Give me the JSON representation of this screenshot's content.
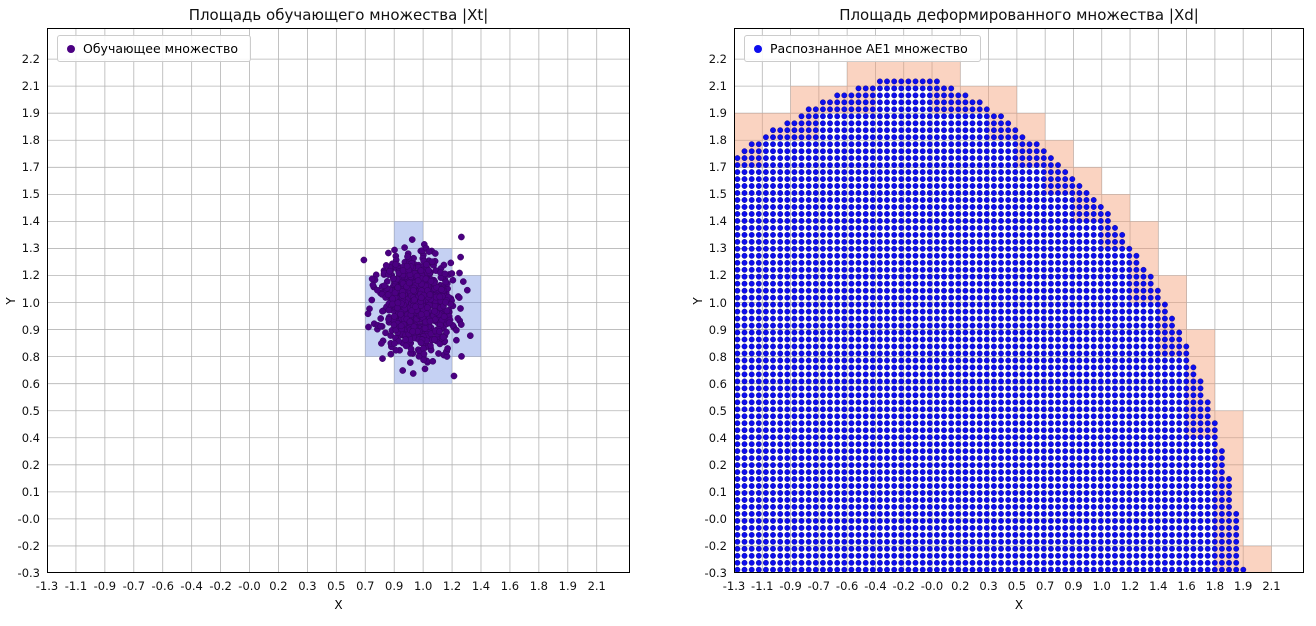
{
  "figure": {
    "background": "#ffffff",
    "grid_color": "#b4b4b4",
    "spine_color": "#000000"
  },
  "axes_model": {
    "x_start": -1.3,
    "x_step": 0.18,
    "y_start": -0.3,
    "y_step": 0.1316,
    "tick_count": 20,
    "tick_divisor": 20.15,
    "grid": true
  },
  "charts": [
    {
      "title": "Площадь обучающего множества |Xt|",
      "xlabel": "X",
      "ylabel": "Y",
      "legend": {
        "label": "Обучающее множество",
        "marker_color": "#4B0082"
      },
      "x_tick_labels": [
        "-1.3",
        "-1.1",
        "-0.9",
        "-0.7",
        "-0.6",
        "-0.4",
        "-0.2",
        "-0.0",
        "0.2",
        "0.3",
        "0.5",
        "0.7",
        "0.9",
        "1.0",
        "1.2",
        "1.4",
        "1.6",
        "1.8",
        "1.9",
        "2.1"
      ],
      "y_tick_labels": [
        "-0.3",
        "-0.2",
        "-0.0",
        "0.1",
        "0.2",
        "0.4",
        "0.5",
        "0.6",
        "0.8",
        "0.9",
        "1.0",
        "1.2",
        "1.3",
        "1.4",
        "1.5",
        "1.7",
        "1.8",
        "1.9",
        "2.1",
        "2.2"
      ],
      "chart_data": {
        "type": "scatter",
        "series": [
          {
            "name": "Обучающее множество",
            "color": "#4B0082",
            "points": "gaussian_cluster",
            "center": [
              1.0,
              1.0
            ],
            "std": [
              0.115,
              0.115
            ],
            "count": 850,
            "seed": 1337
          }
        ],
        "xlim": [
          -1.3,
          2.327
        ],
        "ylim": [
          -0.3,
          2.352
        ],
        "highlighted_cells": {
          "color": "rgba(110,140,225,0.40)",
          "cells": [
            [
              11,
              8
            ],
            [
              11,
              9
            ],
            [
              11,
              10
            ],
            [
              12,
              7
            ],
            [
              12,
              8
            ],
            [
              12,
              9
            ],
            [
              12,
              10
            ],
            [
              12,
              11
            ],
            [
              12,
              12
            ],
            [
              13,
              7
            ],
            [
              13,
              8
            ],
            [
              13,
              9
            ],
            [
              13,
              10
            ],
            [
              13,
              11
            ],
            [
              14,
              8
            ],
            [
              14,
              9
            ],
            [
              14,
              10
            ]
          ]
        }
      }
    },
    {
      "title": "Площадь деформированного множества |Xd|",
      "xlabel": "X",
      "ylabel": "Y",
      "legend": {
        "label": "Распознанное AE1 множество",
        "marker_color": "#0D0DEE"
      },
      "x_tick_labels": [
        "-1.3",
        "-1.1",
        "-0.9",
        "-0.7",
        "-0.6",
        "-0.4",
        "-0.2",
        "-0.0",
        "0.2",
        "0.3",
        "0.5",
        "0.7",
        "0.9",
        "1.0",
        "1.2",
        "1.4",
        "1.6",
        "1.8",
        "1.9",
        "2.1"
      ],
      "y_tick_labels": [
        "-0.3",
        "-0.2",
        "-0.0",
        "0.1",
        "0.2",
        "0.4",
        "0.5",
        "0.6",
        "0.8",
        "0.9",
        "1.0",
        "1.2",
        "1.3",
        "1.4",
        "1.5",
        "1.7",
        "1.8",
        "1.9",
        "2.1",
        "2.2"
      ],
      "chart_data": {
        "type": "dot_grid_region",
        "series_name": "Распознанное AE1 множество",
        "dot_color": "#0D0DEE",
        "dot_edge_color": "#000080",
        "dot_spacing_frac": [
          0.0125,
          0.0128
        ],
        "region_boundary": [
          [
            -1.4,
            1.7
          ],
          [
            -1.05,
            1.88
          ],
          [
            -0.7,
            2.03
          ],
          [
            -0.38,
            2.12
          ],
          [
            -0.05,
            2.14
          ],
          [
            0.3,
            2.0
          ],
          [
            0.65,
            1.8
          ],
          [
            1.05,
            1.5
          ],
          [
            1.35,
            1.18
          ],
          [
            1.6,
            0.8
          ],
          [
            1.78,
            0.42
          ],
          [
            1.9,
            0.02
          ],
          [
            1.97,
            -0.42
          ]
        ],
        "xlim": [
          -1.3,
          2.327
        ],
        "ylim": [
          -0.3,
          2.352
        ],
        "boundary_cells_color": "rgba(245,158,118,0.45)"
      }
    }
  ]
}
